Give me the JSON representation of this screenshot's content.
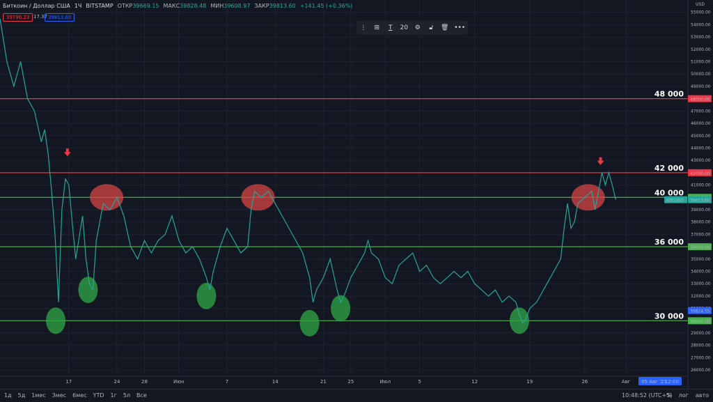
{
  "header": {
    "symbol": "Биткоин / Доллар США",
    "interval": "1Ч",
    "exchange": "BITSTAMP",
    "open_label": "ОТКР",
    "open": "39669.15",
    "high_label": "МАКС",
    "high": "39828.48",
    "low_label": "МИН",
    "low": "39608.97",
    "close_label": "ЗАКР",
    "close": "39813.60",
    "change": "+141.45 (+0.36%)"
  },
  "price_boxes": {
    "sell": "39796.23",
    "spread": "17.37",
    "buy": "39813.60"
  },
  "toolbar": {
    "font_size": "20",
    "more": "•••"
  },
  "bottom": {
    "timeframes": [
      "1д",
      "5д",
      "1мес",
      "3мес",
      "6мес",
      "YTD",
      "1г",
      "5л",
      "Все"
    ],
    "clock": "10:48:52 (UTC+5)",
    "percent": "%",
    "log": "лог",
    "auto": "авто"
  },
  "chart_data": {
    "type": "line",
    "currency": "USD",
    "ylim": [
      25500,
      56000
    ],
    "y_ticks": [
      26000,
      27000,
      28000,
      29000,
      30000,
      31000,
      32000,
      33000,
      34000,
      35000,
      36000,
      37000,
      38000,
      39000,
      40000,
      41000,
      42000,
      43000,
      44000,
      45000,
      46000,
      47000,
      48000,
      49000,
      50000,
      51000,
      52000,
      53000,
      54000,
      55000
    ],
    "x_ticks": [
      {
        "label": "17",
        "x": 0.1
      },
      {
        "label": "24",
        "x": 0.17
      },
      {
        "label": "28",
        "x": 0.21
      },
      {
        "label": "Июн",
        "x": 0.26
      },
      {
        "label": "7",
        "x": 0.33
      },
      {
        "label": "14",
        "x": 0.4
      },
      {
        "label": "21",
        "x": 0.47
      },
      {
        "label": "25",
        "x": 0.51
      },
      {
        "label": "Июл",
        "x": 0.56
      },
      {
        "label": "5",
        "x": 0.61
      },
      {
        "label": "12",
        "x": 0.69
      },
      {
        "label": "19",
        "x": 0.77
      },
      {
        "label": "26",
        "x": 0.85
      },
      {
        "label": "Авг",
        "x": 0.91
      }
    ],
    "series": [
      {
        "points": [
          [
            0.0,
            54500
          ],
          [
            0.01,
            51000
          ],
          [
            0.02,
            49000
          ],
          [
            0.03,
            51000
          ],
          [
            0.04,
            48000
          ],
          [
            0.05,
            47000
          ],
          [
            0.06,
            44500
          ],
          [
            0.065,
            45500
          ],
          [
            0.07,
            43500
          ],
          [
            0.075,
            40500
          ],
          [
            0.08,
            37000
          ],
          [
            0.085,
            31500
          ],
          [
            0.09,
            39000
          ],
          [
            0.095,
            41500
          ],
          [
            0.1,
            41000
          ],
          [
            0.105,
            38000
          ],
          [
            0.11,
            35000
          ],
          [
            0.12,
            38500
          ],
          [
            0.125,
            35000
          ],
          [
            0.13,
            33000
          ],
          [
            0.135,
            32500
          ],
          [
            0.14,
            36500
          ],
          [
            0.15,
            39500
          ],
          [
            0.16,
            39000
          ],
          [
            0.17,
            40000
          ],
          [
            0.18,
            38500
          ],
          [
            0.19,
            36000
          ],
          [
            0.2,
            35000
          ],
          [
            0.21,
            36500
          ],
          [
            0.22,
            35500
          ],
          [
            0.23,
            36500
          ],
          [
            0.24,
            37000
          ],
          [
            0.25,
            38500
          ],
          [
            0.26,
            36500
          ],
          [
            0.27,
            35500
          ],
          [
            0.28,
            36000
          ],
          [
            0.29,
            35000
          ],
          [
            0.3,
            33500
          ],
          [
            0.305,
            32500
          ],
          [
            0.31,
            34000
          ],
          [
            0.32,
            36000
          ],
          [
            0.33,
            37500
          ],
          [
            0.34,
            36500
          ],
          [
            0.35,
            35500
          ],
          [
            0.36,
            36000
          ],
          [
            0.365,
            39000
          ],
          [
            0.37,
            40500
          ],
          [
            0.38,
            40000
          ],
          [
            0.39,
            40500
          ],
          [
            0.4,
            39500
          ],
          [
            0.41,
            38500
          ],
          [
            0.42,
            37500
          ],
          [
            0.43,
            36500
          ],
          [
            0.44,
            35500
          ],
          [
            0.45,
            33500
          ],
          [
            0.455,
            31500
          ],
          [
            0.46,
            32500
          ],
          [
            0.47,
            33500
          ],
          [
            0.48,
            35000
          ],
          [
            0.49,
            32500
          ],
          [
            0.495,
            31500
          ],
          [
            0.5,
            32000
          ],
          [
            0.51,
            33500
          ],
          [
            0.52,
            34500
          ],
          [
            0.53,
            35500
          ],
          [
            0.535,
            36500
          ],
          [
            0.54,
            35500
          ],
          [
            0.55,
            35000
          ],
          [
            0.56,
            33500
          ],
          [
            0.57,
            33000
          ],
          [
            0.58,
            34500
          ],
          [
            0.59,
            35000
          ],
          [
            0.6,
            35500
          ],
          [
            0.61,
            34000
          ],
          [
            0.62,
            34500
          ],
          [
            0.63,
            33500
          ],
          [
            0.64,
            33000
          ],
          [
            0.65,
            33500
          ],
          [
            0.66,
            34000
          ],
          [
            0.67,
            33500
          ],
          [
            0.68,
            34000
          ],
          [
            0.69,
            33000
          ],
          [
            0.7,
            32500
          ],
          [
            0.71,
            32000
          ],
          [
            0.72,
            32500
          ],
          [
            0.73,
            31500
          ],
          [
            0.74,
            32000
          ],
          [
            0.75,
            31500
          ],
          [
            0.755,
            30500
          ],
          [
            0.76,
            29800
          ],
          [
            0.765,
            30200
          ],
          [
            0.77,
            31000
          ],
          [
            0.78,
            31500
          ],
          [
            0.79,
            32500
          ],
          [
            0.8,
            33500
          ],
          [
            0.81,
            34500
          ],
          [
            0.815,
            35000
          ],
          [
            0.82,
            37500
          ],
          [
            0.825,
            39500
          ],
          [
            0.83,
            37500
          ],
          [
            0.835,
            38000
          ],
          [
            0.84,
            39500
          ],
          [
            0.85,
            40000
          ],
          [
            0.86,
            40500
          ],
          [
            0.865,
            39000
          ],
          [
            0.87,
            40500
          ],
          [
            0.875,
            42000
          ],
          [
            0.88,
            41000
          ],
          [
            0.885,
            42000
          ],
          [
            0.89,
            41000
          ],
          [
            0.895,
            39813
          ]
        ]
      }
    ],
    "levels": [
      {
        "label": "48 000",
        "tag": "48000.00",
        "value": 48000,
        "color": "#f23645"
      },
      {
        "label": "42 000",
        "tag": "42000.00",
        "value": 42000,
        "color": "#f23645"
      },
      {
        "label": "40 000",
        "tag": "40000.00",
        "value": 40000,
        "color": "#4caf50"
      },
      {
        "label": "36 000",
        "tag": "36000.00",
        "value": 36000,
        "color": "#4caf50"
      },
      {
        "label": "30 000",
        "tag": "30000.00",
        "value": 30000,
        "color": "#4caf50"
      }
    ],
    "price_tag": {
      "label": "BTCUSD",
      "value": "39813.60",
      "y": 39813.6
    },
    "extra_tag": {
      "value": "30824.55",
      "y": 30824.55
    },
    "date_tag": {
      "date": "05 Авг '21",
      "time": "12:00"
    },
    "highlights": [
      {
        "kind": "resistance",
        "x": 0.155,
        "y": 40000
      },
      {
        "kind": "resistance",
        "x": 0.375,
        "y": 40000
      },
      {
        "kind": "resistance",
        "x": 0.855,
        "y": 40000
      },
      {
        "kind": "support",
        "x": 0.081,
        "y": 30000
      },
      {
        "kind": "support",
        "x": 0.128,
        "y": 32500
      },
      {
        "kind": "support",
        "x": 0.3,
        "y": 32000
      },
      {
        "kind": "support",
        "x": 0.45,
        "y": 29800
      },
      {
        "kind": "support",
        "x": 0.495,
        "y": 31000
      },
      {
        "kind": "support",
        "x": 0.755,
        "y": 30000
      }
    ],
    "arrows": [
      {
        "x": 0.098,
        "y": 43500
      },
      {
        "x": 0.873,
        "y": 42800
      }
    ]
  }
}
